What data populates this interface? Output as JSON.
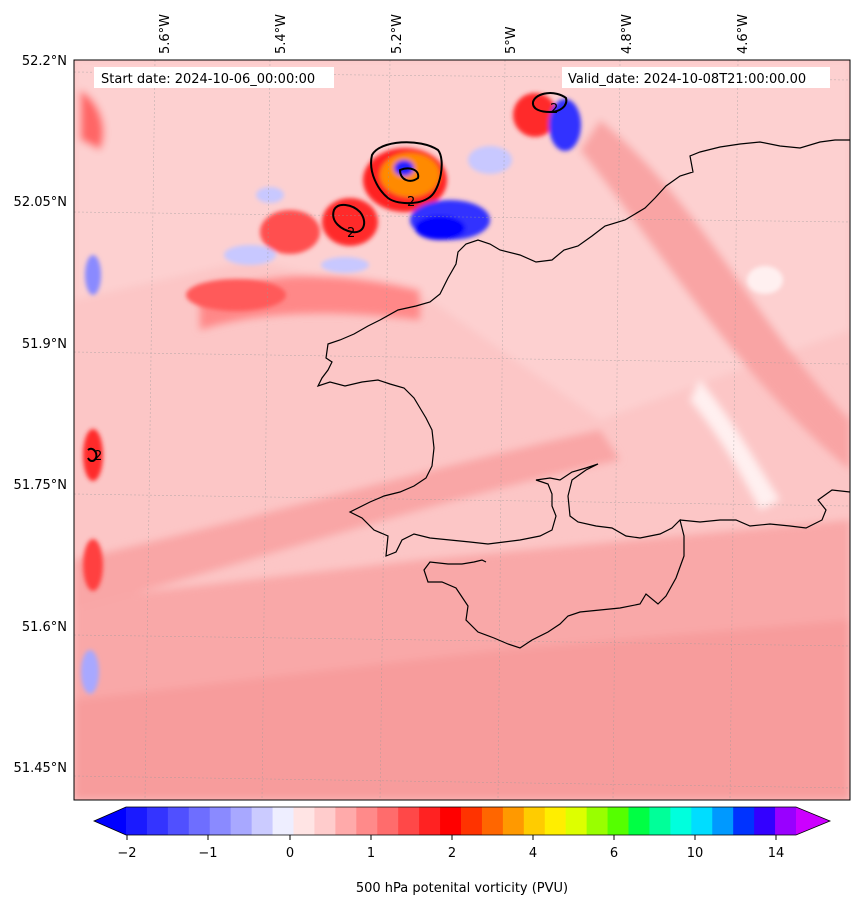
{
  "header": {
    "start_label": "Start date: 2024-10-06_00:00:00",
    "valid_label": "Valid_date: 2024-10-08T21:00:00.00"
  },
  "map": {
    "top_lon_labels": [
      "5.6°W",
      "5.4°W",
      "5.2°W",
      "5°W",
      "4.8°W",
      "4.6°W"
    ],
    "left_lat_labels": [
      "52.2°N",
      "52.05°N",
      "51.9°N",
      "51.75°N",
      "51.6°N",
      "51.45°N"
    ],
    "contour_label": "2",
    "colors": {
      "background_pink": "#fbbcbc",
      "mid_pink": "#f89a9a",
      "light_pink": "#ffd6d6",
      "red": "#ff2a2a",
      "orange": "#ff8a00",
      "blue": "#1a1aff",
      "light_blue": "#c8c8ff",
      "coast": "#000000"
    }
  },
  "colorbar": {
    "ticks": [
      "−2",
      "−1",
      "0",
      "1",
      "2",
      "4",
      "6",
      "10",
      "14"
    ],
    "label": "500 hPa potenital vorticity (PVU)",
    "colors": [
      "#1a1aff",
      "#3434ff",
      "#5050ff",
      "#6e6eff",
      "#8a8aff",
      "#a8a8ff",
      "#cbcbff",
      "#eeeeff",
      "#ffe4e4",
      "#ffcccc",
      "#ffaaaa",
      "#ff8a8a",
      "#ff6c6c",
      "#ff4848",
      "#ff2222",
      "#ff0000",
      "#ff3300",
      "#ff6600",
      "#ff9900",
      "#ffcc00",
      "#ffee00",
      "#ddff00",
      "#99ff00",
      "#55ff00",
      "#00ff44",
      "#00ff99",
      "#00ffdd",
      "#00ddff",
      "#0099ff",
      "#0033ff",
      "#3300ff",
      "#9900ff"
    ],
    "under_color": "#0000ff",
    "over_color": "#cc00ff"
  }
}
